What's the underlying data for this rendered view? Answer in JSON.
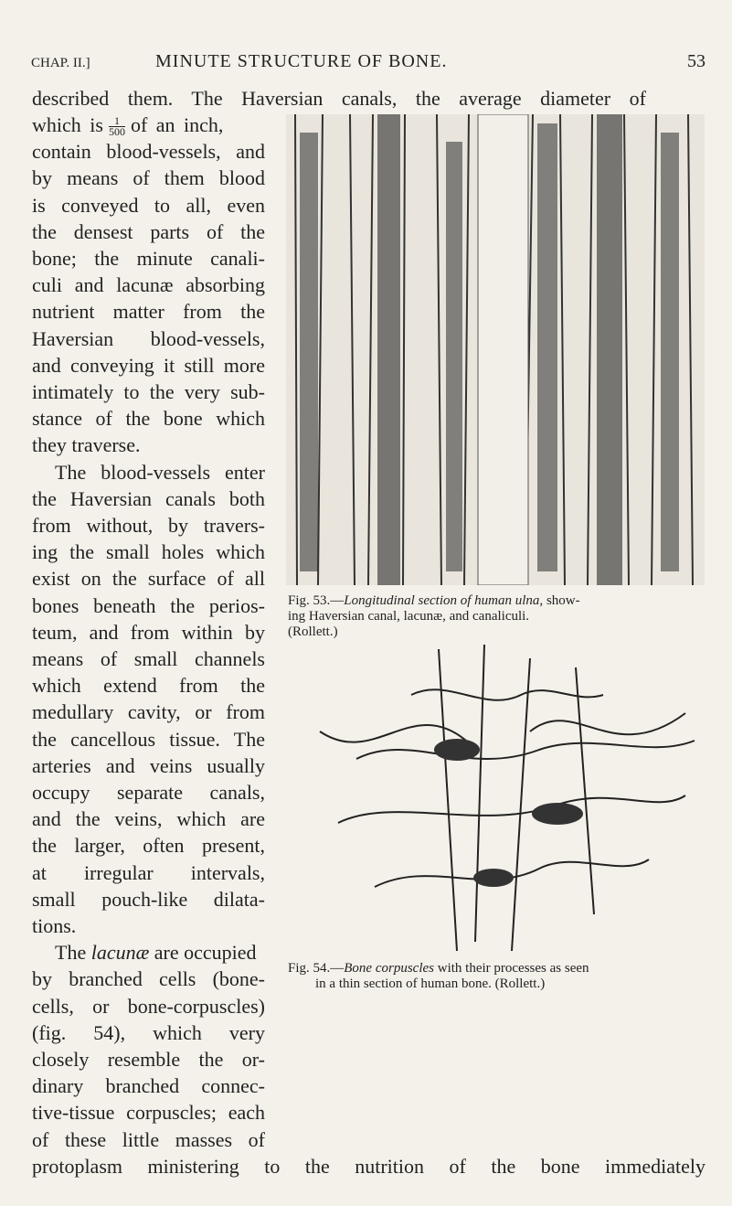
{
  "header": {
    "left": "CHAP. II.]",
    "title": "MINUTE STRUCTURE OF BONE.",
    "page": "53"
  },
  "body_lines": [
    "described them. The Haversian canals, the average diameter of",
    [
      "which is",
      "1",
      "500",
      "of an inch,"
    ],
    "contain blood-vessels, and",
    "by means of them blood",
    "is conveyed to all, even",
    "the densest parts of the",
    "bone; the minute canali-",
    "culi and lacunæ absorbing",
    "nutrient matter from the",
    "Haversian blood-vessels,",
    "and conveying it still more",
    "intimately to the very sub-",
    "stance of the bone which",
    "they traverse.",
    "The blood-vessels enter",
    "the Haversian canals both",
    "from without, by travers-",
    "ing the small holes which",
    "exist on the surface of all",
    "bones beneath the perios-",
    "teum, and from within by",
    "means of small channels",
    "which extend from the",
    "medullary cavity, or from",
    "the cancellous tissue. The",
    "arteries and veins usually",
    "occupy separate canals,",
    "and the veins, which are",
    "the larger, often present,",
    "at irregular intervals,",
    "small pouch-like dilata-",
    "tions.",
    [
      "The ",
      "lacunæ",
      " are occupied"
    ],
    "by branched cells (bone-",
    "cells, or bone-corpuscles)",
    "(fig. 54), which very",
    "closely resemble the or-",
    "dinary branched connec-",
    "tive-tissue corpuscles; each",
    "of these little masses of",
    "protoplasm ministering to the nutrition of the bone immediately"
  ],
  "figures": [
    {
      "caption_lines": [
        [
          "Fig. 53.—",
          "Longitudinal section of human ulna,",
          " show-"
        ],
        "ing Haversian canal, lacunæ, and canaliculi.",
        "(Rollett.)"
      ]
    },
    {
      "caption_lines": [
        [
          "Fig. 54.—",
          "Bone corpuscles",
          " with their processes as seen"
        ],
        "in a thin section of human bone. (Rollett.)"
      ]
    }
  ]
}
